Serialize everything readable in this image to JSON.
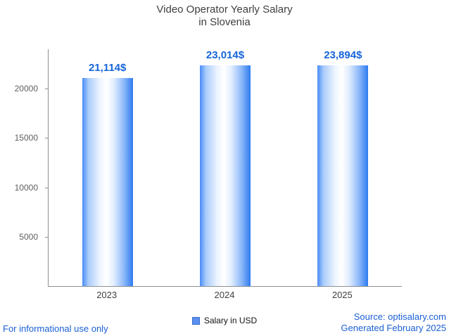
{
  "chart_data": {
    "type": "bar",
    "title": "Video Operator Yearly Salary",
    "subtitle": "in Slovenia",
    "categories": [
      "2023",
      "2024",
      "2025"
    ],
    "values": [
      21114,
      23014,
      23894
    ],
    "value_labels": [
      "21,114$",
      "23,014$",
      "23,894$"
    ],
    "ylim": [
      0,
      24000
    ],
    "yticks": [
      5000,
      10000,
      15000,
      20000
    ],
    "ytick_labels": [
      "5000",
      "10000",
      "15000",
      "20000"
    ],
    "xlabel": "",
    "ylabel": "",
    "grid": false,
    "legend": "Salary in USD",
    "legend_position": "bottom-center"
  },
  "colors": {
    "value_label": "#1565d8",
    "bar_edge": "#2e7bf0",
    "bar_center": "#ffffff",
    "axis": "#8f8f8f",
    "footer_text": "#1a5fd6",
    "legend_swatch": "#5b8ff0"
  },
  "footer": {
    "disclaimer": "For informational use only",
    "source": "Source: optisalary.com",
    "generated": "Generated February 2025"
  }
}
